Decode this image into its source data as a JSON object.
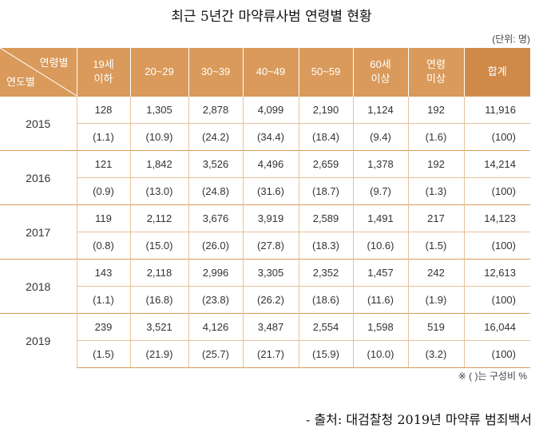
{
  "title": "최근 5년간 마약류사범 연령별 현황",
  "unit": "(단위: 명)",
  "header": {
    "corner_top": "연령별",
    "corner_bottom": "연도별",
    "columns": [
      "19세 이하",
      "20~29",
      "30~39",
      "40~49",
      "50~59",
      "60세 이상",
      "연령 미상",
      "합계"
    ]
  },
  "note": "※ (   )는 구성비 %",
  "source": "- 출처: 대검찰청 2019년 마약류 범죄백서",
  "colors": {
    "header": "#d99a5b",
    "line": "#e7c19a"
  },
  "chart_data": {
    "type": "table",
    "years": [
      "2015",
      "2016",
      "2017",
      "2018",
      "2019"
    ],
    "columns": [
      "19세 이하",
      "20~29",
      "30~39",
      "40~49",
      "50~59",
      "60세 이상",
      "연령 미상",
      "합계"
    ],
    "counts": [
      [
        "128",
        "1,305",
        "2,878",
        "4,099",
        "2,190",
        "1,124",
        "192",
        "11,916"
      ],
      [
        "121",
        "1,842",
        "3,526",
        "4,496",
        "2,659",
        "1,378",
        "192",
        "14,214"
      ],
      [
        "119",
        "2,112",
        "3,676",
        "3,919",
        "2,589",
        "1,491",
        "217",
        "14,123"
      ],
      [
        "143",
        "2,118",
        "2,996",
        "3,305",
        "2,352",
        "1,457",
        "242",
        "12,613"
      ],
      [
        "239",
        "3,521",
        "4,126",
        "3,487",
        "2,554",
        "1,598",
        "519",
        "16,044"
      ]
    ],
    "ratios": [
      [
        "(1.1)",
        "(10.9)",
        "(24.2)",
        "(34.4)",
        "(18.4)",
        "(9.4)",
        "(1.6)",
        "(100)"
      ],
      [
        "(0.9)",
        "(13.0)",
        "(24.8)",
        "(31.6)",
        "(18.7)",
        "(9.7)",
        "(1.3)",
        "(100)"
      ],
      [
        "(0.8)",
        "(15.0)",
        "(26.0)",
        "(27.8)",
        "(18.3)",
        "(10.6)",
        "(1.5)",
        "(100)"
      ],
      [
        "(1.1)",
        "(16.8)",
        "(23.8)",
        "(26.2)",
        "(18.6)",
        "(11.6)",
        "(1.9)",
        "(100)"
      ],
      [
        "(1.5)",
        "(21.9)",
        "(25.7)",
        "(21.7)",
        "(15.9)",
        "(10.0)",
        "(3.2)",
        "(100)"
      ]
    ]
  }
}
